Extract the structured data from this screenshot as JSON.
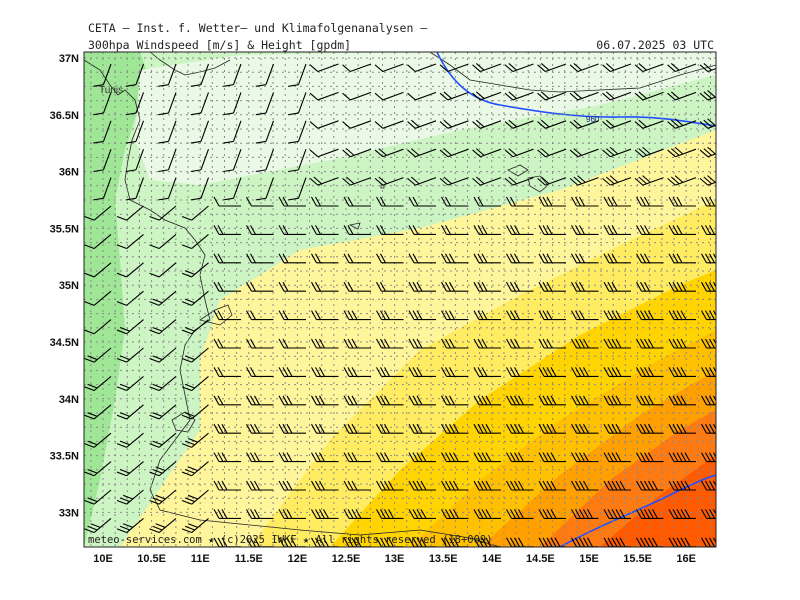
{
  "header": {
    "title": "CETA — Inst. f. Wetter— und Klimafolgenanalysen —",
    "product": "300hpa_Windspeed_[m/s]_&_Height_[gpdm]",
    "datetime": "06.07.2025 03 UTC"
  },
  "map": {
    "city_label": "Tunis",
    "contour_label": "960",
    "lat_labels": [
      "37N",
      "36.5N",
      "36N",
      "35.5N",
      "35N",
      "34.5N",
      "34N",
      "33.5N",
      "33N"
    ],
    "lon_labels": [
      "10E",
      "10.5E",
      "11E",
      "11.5E",
      "12E",
      "12.5E",
      "13E",
      "13.5E",
      "14E",
      "14.5E",
      "15E",
      "15.5E",
      "16E"
    ],
    "colors": {
      "light_green": "#cdf5c3",
      "green": "#9fe796",
      "very_light": "#eaf9e6",
      "light_yellow": "#fff59a",
      "yellow": "#ffec60",
      "gold": "#ffd400",
      "amber": "#ffc000",
      "orange": "#ffa000",
      "dark_orange": "#ff7a10",
      "red_orange": "#ff5a00",
      "contour": "#2050ff"
    }
  },
  "footer": {
    "copyright": "meteo-services.com ★ (c)2025 IWKF ★ All rights reserved (18+009)"
  }
}
